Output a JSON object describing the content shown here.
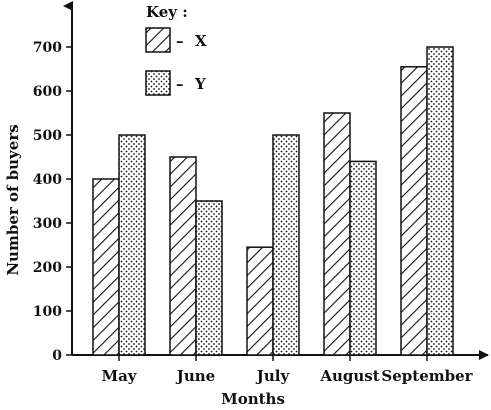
{
  "chart_data": {
    "type": "bar",
    "categories": [
      "May",
      "June",
      "July",
      "August",
      "September"
    ],
    "series": [
      {
        "name": "X",
        "values": [
          400,
          450,
          245,
          550,
          655
        ],
        "pattern": "hatch"
      },
      {
        "name": "Y",
        "values": [
          500,
          350,
          500,
          440,
          700
        ],
        "pattern": "dots"
      }
    ],
    "xlabel": "Months",
    "ylabel": "Number of buyers",
    "ylim": [
      0,
      800
    ],
    "yticks": [
      0,
      100,
      200,
      300,
      400,
      500,
      600,
      700
    ],
    "legend": {
      "title": "Key :",
      "placement": "top-center"
    },
    "grid": false,
    "colors": {
      "ink": "#111111",
      "background": "#ffffff"
    }
  }
}
